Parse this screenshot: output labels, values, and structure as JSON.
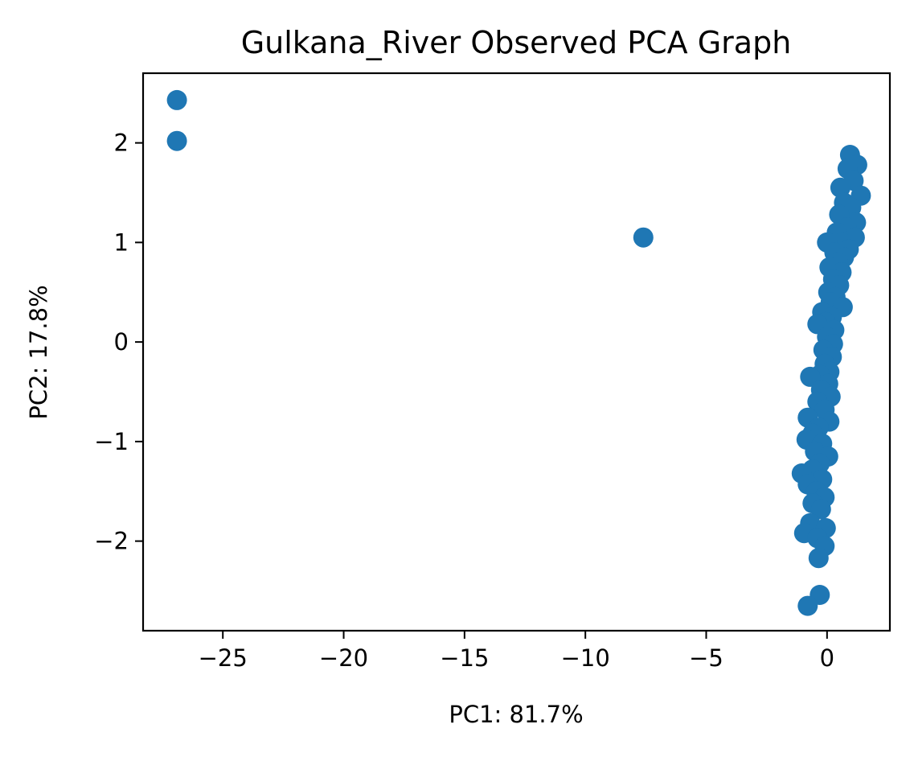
{
  "chart_data": {
    "type": "scatter",
    "title": "Gulkana_River Observed PCA Graph",
    "xlabel": "PC1: 81.7%",
    "ylabel": "PC2: 17.8%",
    "xlim": [
      -28.3,
      2.6
    ],
    "ylim": [
      -2.9,
      2.7
    ],
    "xticks": [
      -25,
      -20,
      -15,
      -10,
      -5,
      0
    ],
    "xtick_labels": [
      "−25",
      "−20",
      "−15",
      "−10",
      "−5",
      "0"
    ],
    "yticks": [
      -2,
      -1,
      0,
      1,
      2
    ],
    "ytick_labels": [
      "−2",
      "−1",
      "0",
      "1",
      "2"
    ],
    "grid": false,
    "legend": "none",
    "series": [
      {
        "color": "#1f77b4",
        "points": [
          {
            "x": -26.9,
            "y": 2.43
          },
          {
            "x": -26.9,
            "y": 2.02
          },
          {
            "x": -7.6,
            "y": 1.05
          },
          {
            "x": 0.95,
            "y": 1.88
          },
          {
            "x": 1.25,
            "y": 1.78
          },
          {
            "x": 0.85,
            "y": 1.74
          },
          {
            "x": 1.1,
            "y": 1.62
          },
          {
            "x": 0.55,
            "y": 1.55
          },
          {
            "x": 1.4,
            "y": 1.47
          },
          {
            "x": 0.7,
            "y": 1.4
          },
          {
            "x": 1.0,
            "y": 1.35
          },
          {
            "x": 0.5,
            "y": 1.28
          },
          {
            "x": 1.2,
            "y": 1.2
          },
          {
            "x": 0.8,
            "y": 1.15
          },
          {
            "x": 0.4,
            "y": 1.1
          },
          {
            "x": 1.15,
            "y": 1.05
          },
          {
            "x": 0.6,
            "y": 1.0
          },
          {
            "x": 0.0,
            "y": 1.0
          },
          {
            "x": 0.9,
            "y": 0.93
          },
          {
            "x": 0.3,
            "y": 0.9
          },
          {
            "x": 0.7,
            "y": 0.85
          },
          {
            "x": 0.45,
            "y": 0.8
          },
          {
            "x": 0.1,
            "y": 0.75
          },
          {
            "x": 0.6,
            "y": 0.7
          },
          {
            "x": 0.25,
            "y": 0.63
          },
          {
            "x": 0.5,
            "y": 0.57
          },
          {
            "x": 0.05,
            "y": 0.5
          },
          {
            "x": 0.35,
            "y": 0.45
          },
          {
            "x": 0.15,
            "y": 0.4
          },
          {
            "x": 0.65,
            "y": 0.35
          },
          {
            "x": -0.2,
            "y": 0.3
          },
          {
            "x": 0.2,
            "y": 0.25
          },
          {
            "x": -0.05,
            "y": 0.2
          },
          {
            "x": -0.4,
            "y": 0.18
          },
          {
            "x": 0.3,
            "y": 0.12
          },
          {
            "x": 0.0,
            "y": 0.05
          },
          {
            "x": 0.25,
            "y": -0.02
          },
          {
            "x": -0.15,
            "y": -0.08
          },
          {
            "x": 0.2,
            "y": -0.15
          },
          {
            "x": -0.1,
            "y": -0.22
          },
          {
            "x": 0.1,
            "y": -0.3
          },
          {
            "x": -0.3,
            "y": -0.33
          },
          {
            "x": -0.7,
            "y": -0.35
          },
          {
            "x": 0.05,
            "y": -0.42
          },
          {
            "x": -0.25,
            "y": -0.48
          },
          {
            "x": 0.15,
            "y": -0.55
          },
          {
            "x": -0.4,
            "y": -0.6
          },
          {
            "x": -0.1,
            "y": -0.68
          },
          {
            "x": -0.8,
            "y": -0.76
          },
          {
            "x": 0.1,
            "y": -0.8
          },
          {
            "x": -0.35,
            "y": -0.86
          },
          {
            "x": -0.6,
            "y": -0.92
          },
          {
            "x": -0.85,
            "y": -0.98
          },
          {
            "x": -0.2,
            "y": -1.02
          },
          {
            "x": -0.5,
            "y": -1.1
          },
          {
            "x": 0.05,
            "y": -1.15
          },
          {
            "x": -0.3,
            "y": -1.22
          },
          {
            "x": -0.6,
            "y": -1.28
          },
          {
            "x": -1.05,
            "y": -1.32
          },
          {
            "x": -0.2,
            "y": -1.38
          },
          {
            "x": -0.8,
            "y": -1.43
          },
          {
            "x": -0.45,
            "y": -1.5
          },
          {
            "x": -0.1,
            "y": -1.56
          },
          {
            "x": -0.6,
            "y": -1.62
          },
          {
            "x": -0.25,
            "y": -1.68
          },
          {
            "x": -0.7,
            "y": -1.82
          },
          {
            "x": -0.05,
            "y": -1.87
          },
          {
            "x": -0.95,
            "y": -1.92
          },
          {
            "x": -0.4,
            "y": -1.97
          },
          {
            "x": -0.1,
            "y": -2.05
          },
          {
            "x": -0.35,
            "y": -2.17
          },
          {
            "x": -0.3,
            "y": -2.54
          },
          {
            "x": -0.8,
            "y": -2.65
          }
        ]
      }
    ]
  }
}
